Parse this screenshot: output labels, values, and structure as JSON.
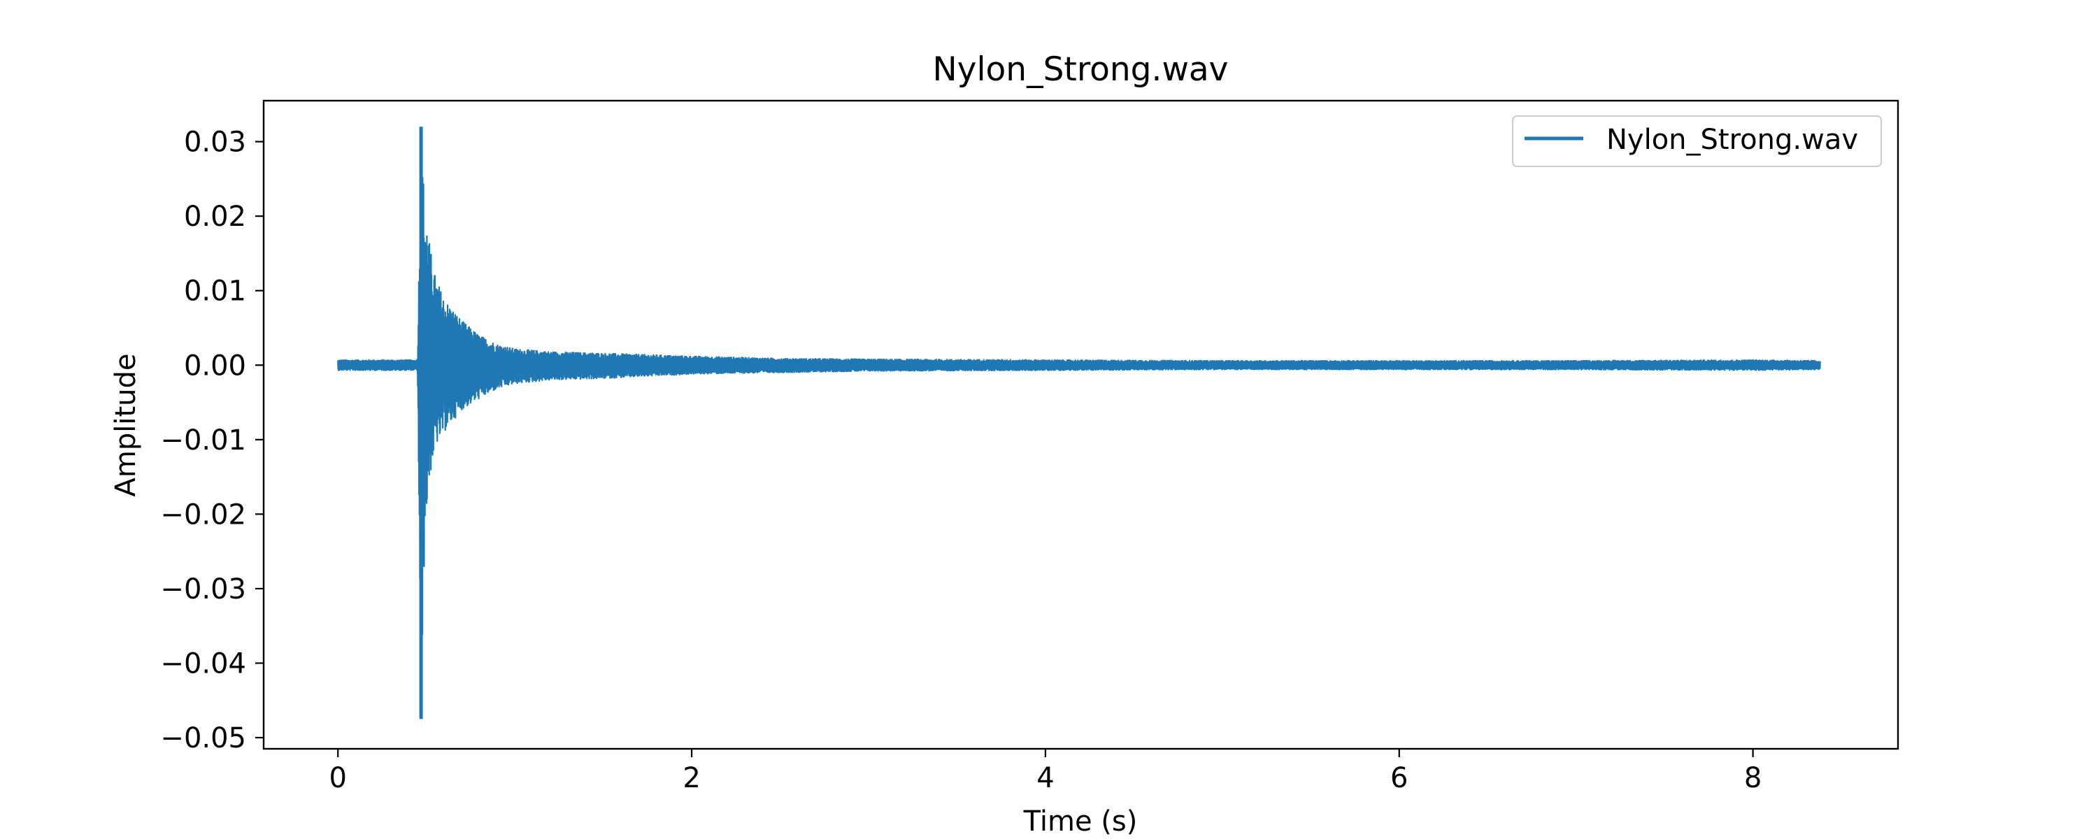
{
  "chart_data": {
    "type": "line",
    "title": "Nylon_Strong.wav",
    "xlabel": "Time (s)",
    "ylabel": "Amplitude",
    "xlim": [
      -0.42,
      8.82
    ],
    "ylim": [
      -0.0515,
      0.0355
    ],
    "xticks": [
      0,
      2,
      4,
      6,
      8
    ],
    "xtick_labels": [
      "0",
      "2",
      "4",
      "6",
      "8"
    ],
    "yticks": [
      -0.05,
      -0.04,
      -0.03,
      -0.02,
      -0.01,
      0.0,
      0.01,
      0.02,
      0.03
    ],
    "ytick_labels": [
      "−0.05",
      "−0.04",
      "−0.03",
      "−0.02",
      "−0.01",
      "0.00",
      "0.01",
      "0.02",
      "0.03"
    ],
    "grid": false,
    "legend_position": "top-right",
    "series": [
      {
        "name": "Nylon_Strong.wav",
        "color": "#1f77b4",
        "duration_s": 8.38,
        "onset_s": 0.47,
        "envelope": {
          "t": [
            0.0,
            0.45,
            0.47,
            0.48,
            0.49,
            0.5,
            0.52,
            0.55,
            0.6,
            0.65,
            0.7,
            0.8,
            0.9,
            1.0,
            1.2,
            1.5,
            2.0,
            2.5,
            3.0,
            4.0,
            5.0,
            6.0,
            7.0,
            8.0,
            8.38
          ],
          "upper": [
            0.0007,
            0.0007,
            0.032,
            0.027,
            0.022,
            0.02,
            0.016,
            0.012,
            0.009,
            0.0075,
            0.006,
            0.004,
            0.0028,
            0.0022,
            0.0018,
            0.0016,
            0.0012,
            0.0009,
            0.0008,
            0.0007,
            0.0006,
            0.0006,
            0.0006,
            0.0007,
            0.0006
          ],
          "lower": [
            -0.0007,
            -0.0007,
            -0.0475,
            -0.034,
            -0.025,
            -0.02,
            -0.015,
            -0.011,
            -0.009,
            -0.0075,
            -0.006,
            -0.0045,
            -0.0032,
            -0.0025,
            -0.002,
            -0.0018,
            -0.0012,
            -0.001,
            -0.0008,
            -0.0007,
            -0.0006,
            -0.0006,
            -0.0006,
            -0.0007,
            -0.0006
          ]
        }
      }
    ]
  }
}
